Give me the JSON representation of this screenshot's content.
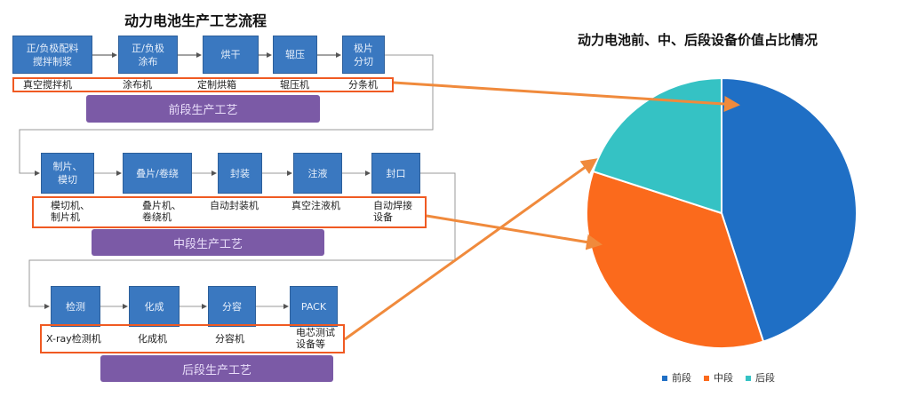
{
  "flow": {
    "title": "动力电池生产工艺流程",
    "front": {
      "phase": "前段生产工艺",
      "steps": [
        "正/负极配料\n搅拌制浆",
        "正/负极\n涂布",
        "烘干",
        "辊压",
        "极片\n分切"
      ],
      "equipment": [
        "真空搅拌机",
        "涂布机",
        "定制烘箱",
        "辊压机",
        "分条机"
      ]
    },
    "middle": {
      "phase": "中段生产工艺",
      "steps": [
        "制片、\n模切",
        "叠片/卷绕",
        "封装",
        "注液",
        "封口"
      ],
      "equipment": [
        "模切机、\n制片机",
        "叠片机、\n卷绕机",
        "自动封装机",
        "真空注液机",
        "自动焊接\n设备"
      ]
    },
    "back": {
      "phase": "后段生产工艺",
      "steps": [
        "检测",
        "化成",
        "分容",
        "PACK"
      ],
      "equipment": [
        "X-ray检测机",
        "化成机",
        "分容机",
        "电芯测试\n设备等"
      ]
    },
    "colors": {
      "step": "#3a78c0",
      "phase": "#7b5aa6",
      "highlight": "#f05a22",
      "arrow": "#f08a3c"
    }
  },
  "chart_data": {
    "type": "pie",
    "title": "动力电池前、中、后段设备价值占比情况",
    "categories": [
      "前段",
      "中段",
      "后段"
    ],
    "values": [
      45,
      35,
      20
    ],
    "colors": [
      "#1f6fc5",
      "#fb6a1c",
      "#35c2c4"
    ],
    "start": "12 o'clock, clockwise",
    "legend": "bottom"
  }
}
